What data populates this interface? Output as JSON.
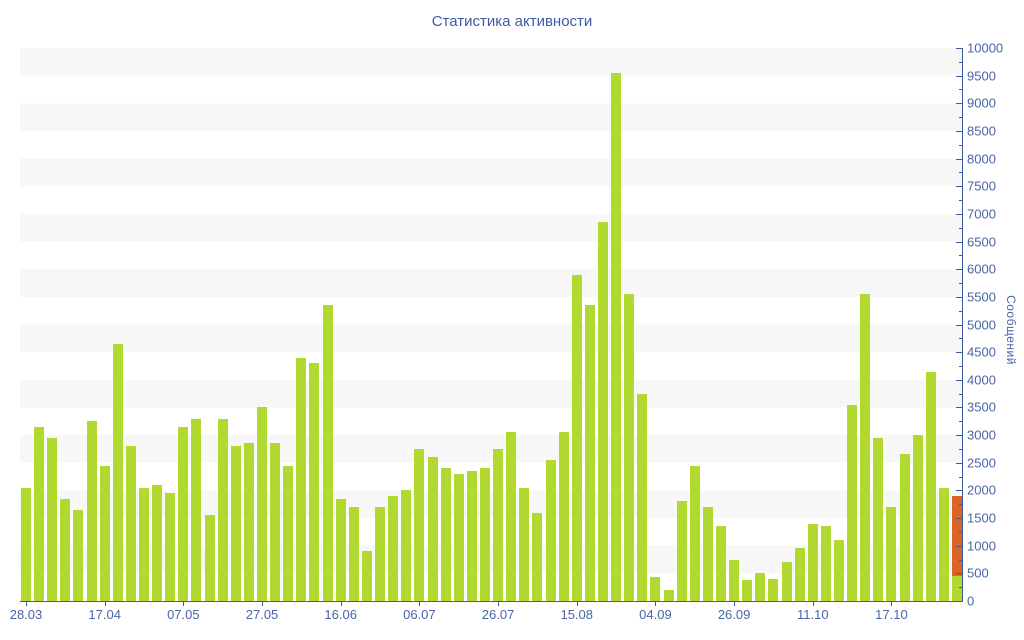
{
  "title": "Статистика активности",
  "colors": {
    "bar_green": "#b2d930",
    "bar_orange": "#dd6227",
    "axis_blue": "#3c5a9c",
    "label_blue": "#4a64a8",
    "band_gray": "#f7f7f7",
    "title_blue": "#3f58a8"
  },
  "chart_data": {
    "type": "bar",
    "title": "Статистика активности",
    "xlabel": "",
    "ylabel": "Сообщений",
    "ylim": [
      0,
      10000
    ],
    "ytick_step": 500,
    "ytick_minor_step": 250,
    "legend_position": "none",
    "grid": "alternating horizontal bands every 500",
    "yaxis_side": "right",
    "values": [
      2050,
      3150,
      2950,
      1850,
      1650,
      3250,
      2450,
      4650,
      2800,
      2050,
      2100,
      1950,
      3150,
      3300,
      1550,
      3300,
      2800,
      2850,
      3500,
      2850,
      2450,
      4400,
      4300,
      5350,
      1850,
      1700,
      900,
      1700,
      1900,
      2000,
      2750,
      2600,
      2400,
      2300,
      2350,
      2400,
      2750,
      3050,
      2050,
      1600,
      2550,
      3050,
      5900,
      5350,
      6850,
      9550,
      5550,
      3750,
      430,
      200,
      1800,
      2450,
      1700,
      1350,
      750,
      380,
      500,
      400,
      700,
      950,
      1400,
      1350,
      1100,
      3550,
      5550,
      2950,
      1700,
      2650,
      3000,
      4150,
      2050,
      1900
    ],
    "last_bar_stack": {
      "note": "final bar is stacked: green bottom segment, orange top segment",
      "green_bottom": 450,
      "orange_top": 1450,
      "total": 1900
    },
    "x_labels": [
      {
        "label": "28.03",
        "bar_index": 0
      },
      {
        "label": "17.04",
        "bar_index": 6
      },
      {
        "label": "07.05",
        "bar_index": 12
      },
      {
        "label": "27.05",
        "bar_index": 18
      },
      {
        "label": "16.06",
        "bar_index": 24
      },
      {
        "label": "06.07",
        "bar_index": 30
      },
      {
        "label": "26.07",
        "bar_index": 36
      },
      {
        "label": "15.08",
        "bar_index": 42
      },
      {
        "label": "04.09",
        "bar_index": 48
      },
      {
        "label": "26.09",
        "bar_index": 54
      },
      {
        "label": "11.10",
        "bar_index": 60
      },
      {
        "label": "17.10",
        "bar_index": 66
      }
    ]
  }
}
